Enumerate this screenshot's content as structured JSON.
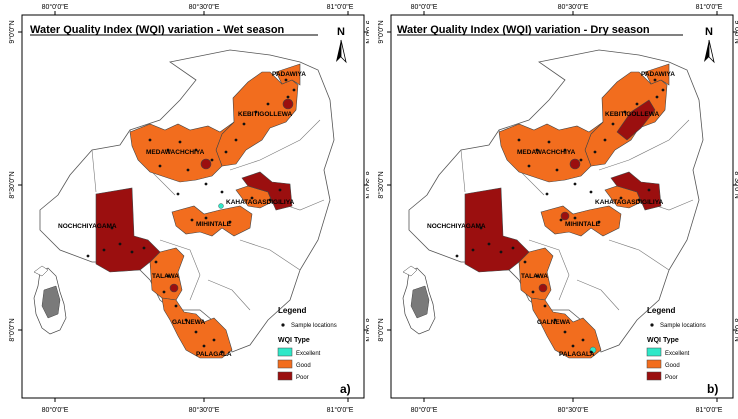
{
  "panels": [
    {
      "title": "Water Quality Index (WQI) variation - Wet season",
      "panel_label": "a)",
      "lon_ticks": [
        "80°0'0\"E",
        "80°30'0\"E",
        "81°0'0\"E"
      ],
      "lat_ticks": [
        "9°0'0\"N",
        "8°30'0\"N",
        "8°0'0\"N"
      ],
      "north": "N",
      "places": [
        "PADAWIYA",
        "KEBITIGOLLEWA",
        "MEDAWACHCHIYA",
        "KAHATAGASDIGILIYA",
        "NOCHCHIYAGAMA",
        "MIHINTALE",
        "TALAWA",
        "GALNEWA",
        "PALAGALA"
      ],
      "legend": {
        "title": "Legend",
        "sample_label": "Sample locations",
        "wqi_title": "WQI Type",
        "items": [
          {
            "label": "Excellent",
            "color": "#2ee8c8"
          },
          {
            "label": "Good",
            "color": "#f26d1e"
          },
          {
            "label": "Poor",
            "color": "#9b0f0f"
          }
        ]
      }
    },
    {
      "title": "Water Quality Index (WQI) variation - Dry season",
      "panel_label": "b)",
      "lon_ticks": [
        "80°0'0\"E",
        "80°30'0\"E",
        "81°0'0\"E"
      ],
      "lat_ticks": [
        "9°0'0\"N",
        "8°30'0\"N",
        "8°0'0\"N"
      ],
      "north": "N",
      "places": [
        "PADAWIYA",
        "KEBITIGOLLEWA",
        "MEDAWACHCHIYA",
        "KAHATAGASDIGILIYA",
        "NOCHCHIYAGAMA",
        "MIHINTALE",
        "TALAWA",
        "GALNEWA",
        "PALAGALA"
      ],
      "legend": {
        "title": "Legend",
        "sample_label": "Sample locations",
        "wqi_title": "WQI Type",
        "items": [
          {
            "label": "Excellent",
            "color": "#2ee8c8"
          },
          {
            "label": "Good",
            "color": "#f26d1e"
          },
          {
            "label": "Poor",
            "color": "#9b0f0f"
          }
        ]
      }
    }
  ]
}
